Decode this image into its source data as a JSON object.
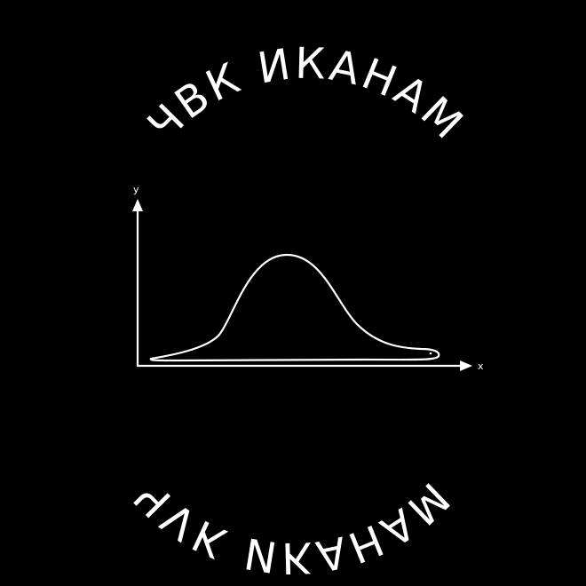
{
  "top_text": "ЧВК  ИКАНАМ",
  "bottom_text": "ЧVК  ИКАНАМ",
  "chart": {
    "y_label": "y",
    "x_label": "x"
  },
  "colors": {
    "background": "#000000",
    "foreground": "#ffffff"
  },
  "icons": {
    "drawing": "snake-swallowed-elephant-bell-curve"
  }
}
